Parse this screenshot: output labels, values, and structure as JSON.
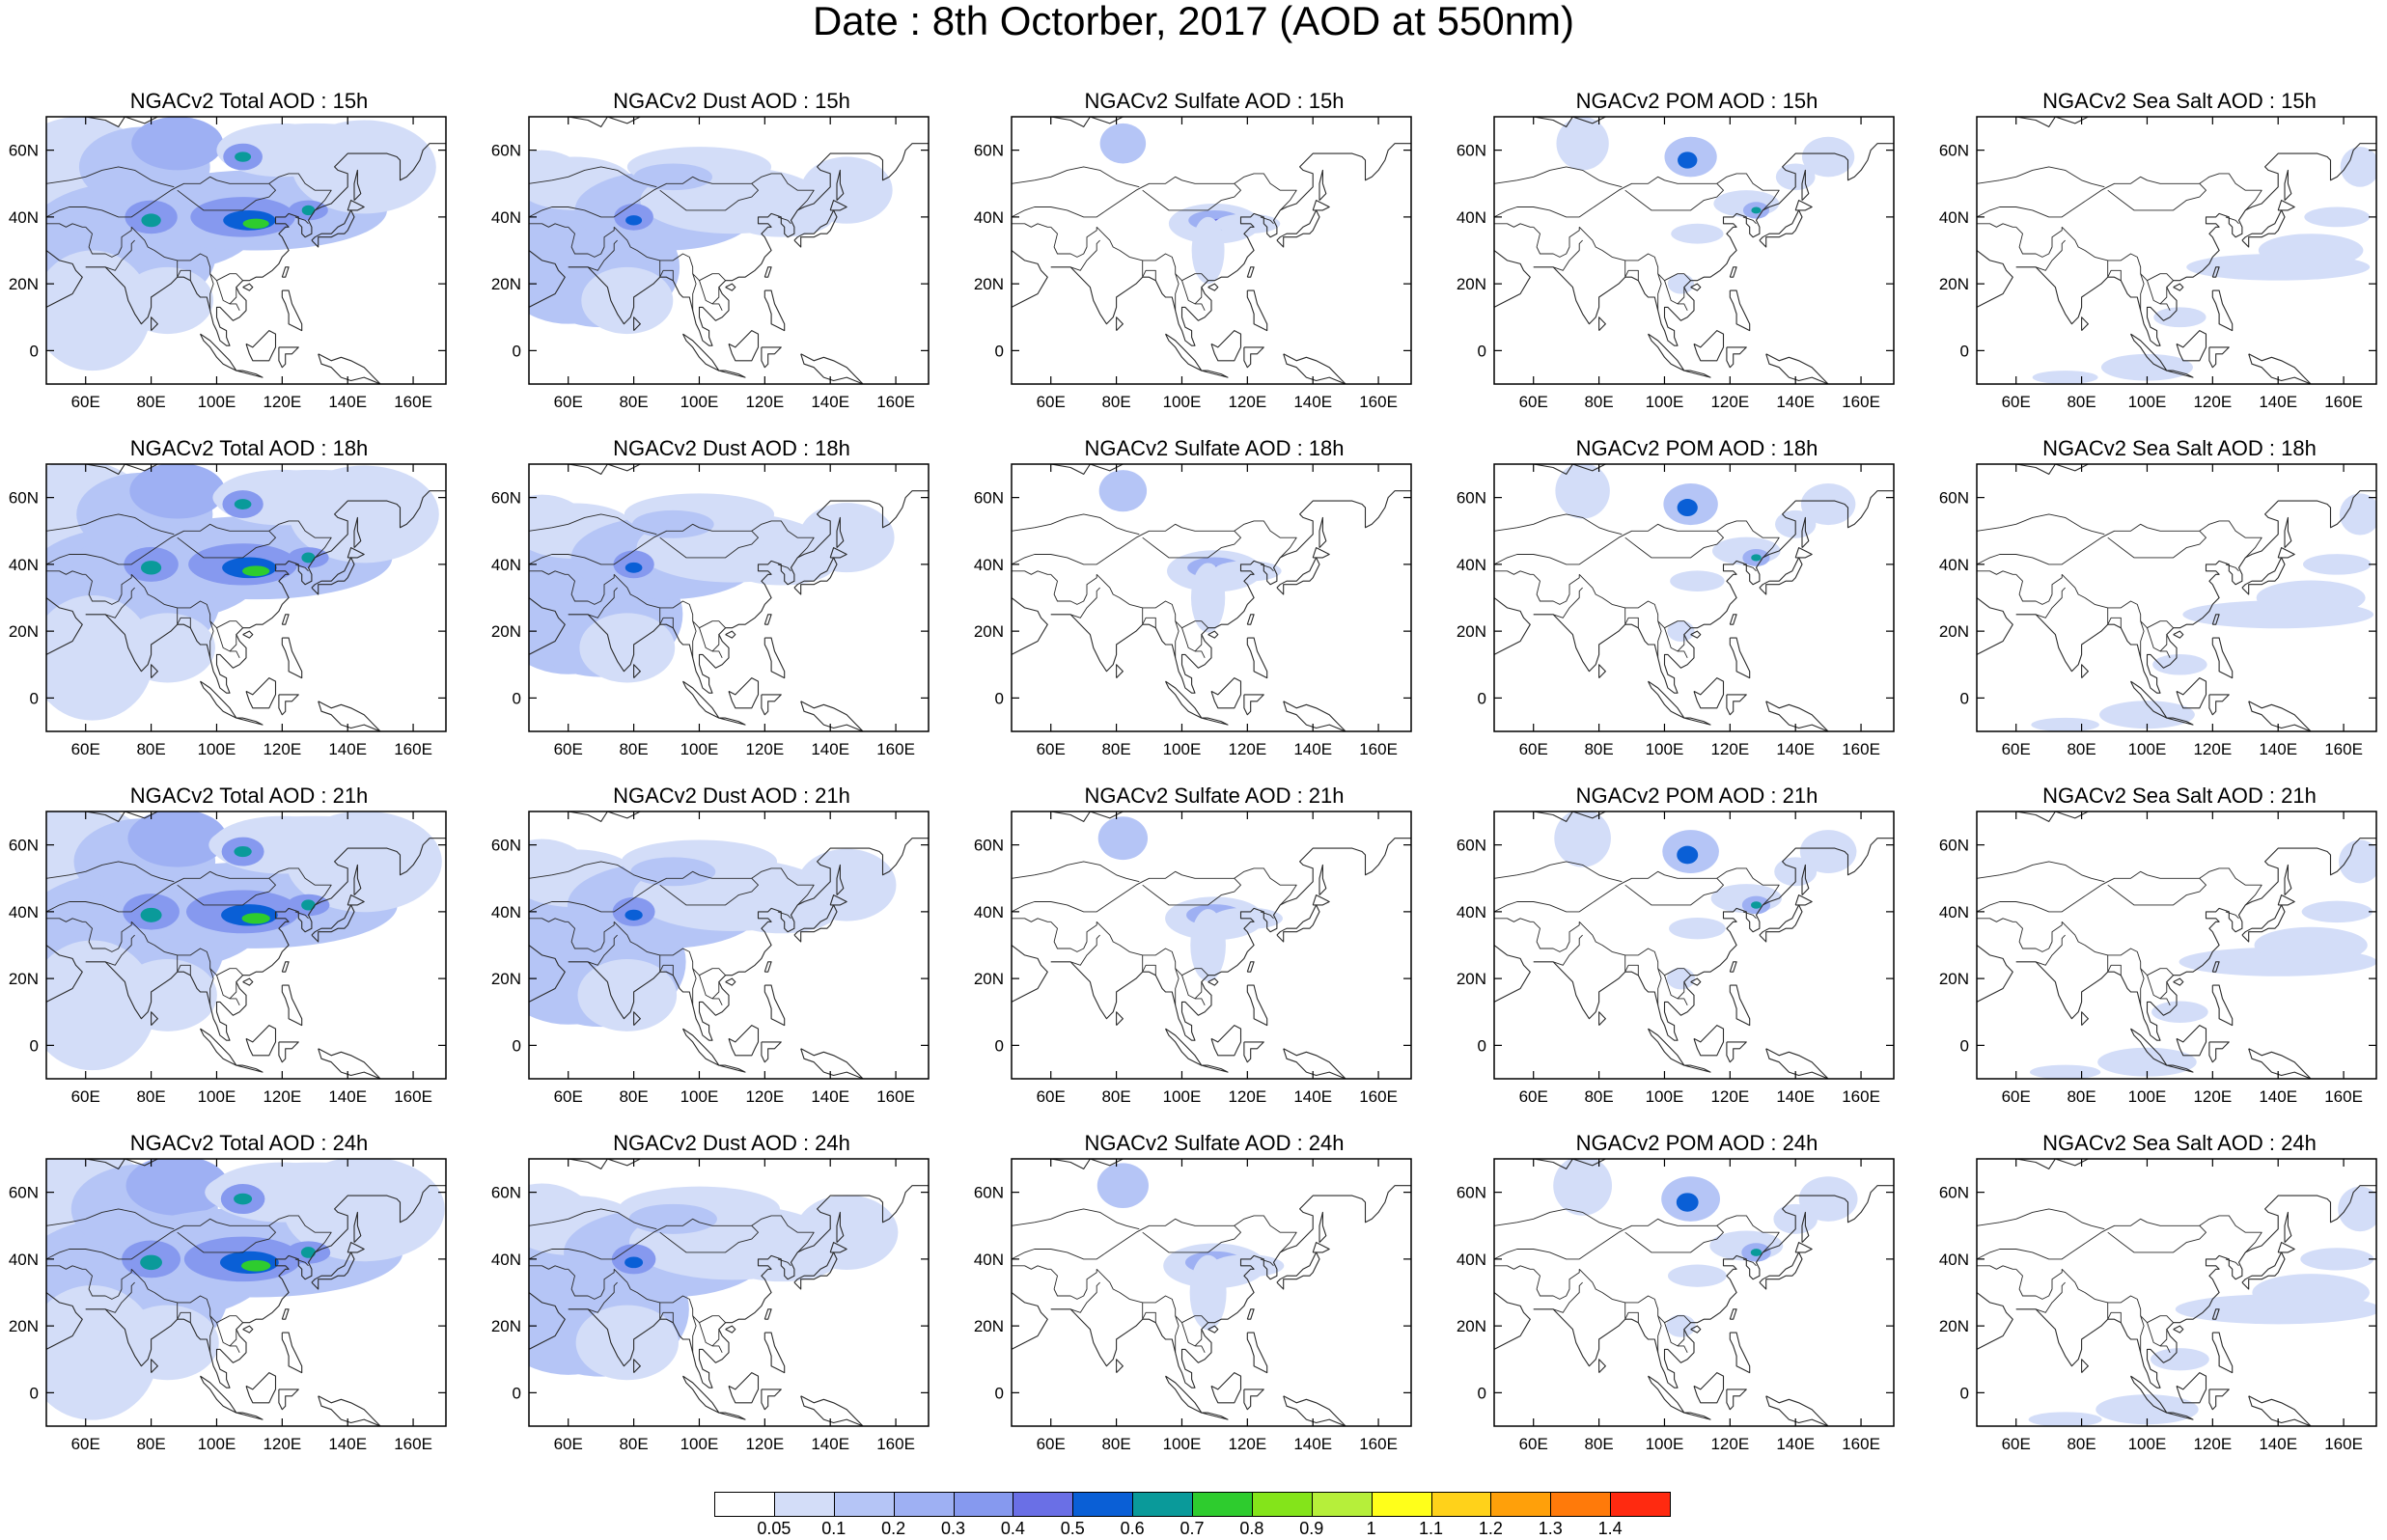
{
  "title": "Date : 8th Octorber, 2017 (AOD at 550nm)",
  "panels": [
    [
      "NGACv2 Total AOD : 15h",
      "NGACv2 Dust AOD : 15h",
      "NGACv2 Sulfate AOD : 15h",
      "NGACv2 POM AOD : 15h",
      "NGACv2 Sea Salt AOD : 15h"
    ],
    [
      "NGACv2 Total AOD : 18h",
      "NGACv2 Dust AOD : 18h",
      "NGACv2 Sulfate AOD : 18h",
      "NGACv2 POM AOD : 18h",
      "NGACv2 Sea Salt AOD : 18h"
    ],
    [
      "NGACv2 Total AOD : 21h",
      "NGACv2 Dust AOD : 21h",
      "NGACv2 Sulfate AOD : 21h",
      "NGACv2 POM AOD : 21h",
      "NGACv2 Sea Salt AOD : 21h"
    ],
    [
      "NGACv2 Total AOD : 24h",
      "NGACv2 Dust AOD : 24h",
      "NGACv2 Sulfate AOD : 24h",
      "NGACv2 POM AOD : 24h",
      "NGACv2 Sea Salt  AOD : 24h"
    ]
  ],
  "map": {
    "lon_range": [
      48,
      170
    ],
    "lat_range": [
      -10,
      70
    ],
    "x_ticks": [
      60,
      80,
      100,
      120,
      140,
      160
    ],
    "x_tick_labels": [
      "60E",
      "80E",
      "100E",
      "120E",
      "140E",
      "160E"
    ],
    "y_ticks": [
      0,
      20,
      40,
      60
    ],
    "y_tick_labels": [
      "0",
      "20N",
      "40N",
      "60N"
    ]
  },
  "colorbar": {
    "colors": [
      "#ffffff",
      "#d3ddf8",
      "#b5c5f6",
      "#9eb0f3",
      "#8699ef",
      "#6a6fe6",
      "#0a5fd6",
      "#0a9a9a",
      "#2ecc2e",
      "#84e41a",
      "#b6ef3a",
      "#ffff1a",
      "#ffd21a",
      "#ffa00a",
      "#ff7a0a",
      "#ff2a10"
    ],
    "labels": [
      "0.05",
      "0.1",
      "0.2",
      "0.3",
      "0.4",
      "0.5",
      "0.6",
      "0.7",
      "0.8",
      "0.9",
      "1",
      "1.1",
      "1.2",
      "1.3",
      "1.4"
    ]
  }
}
